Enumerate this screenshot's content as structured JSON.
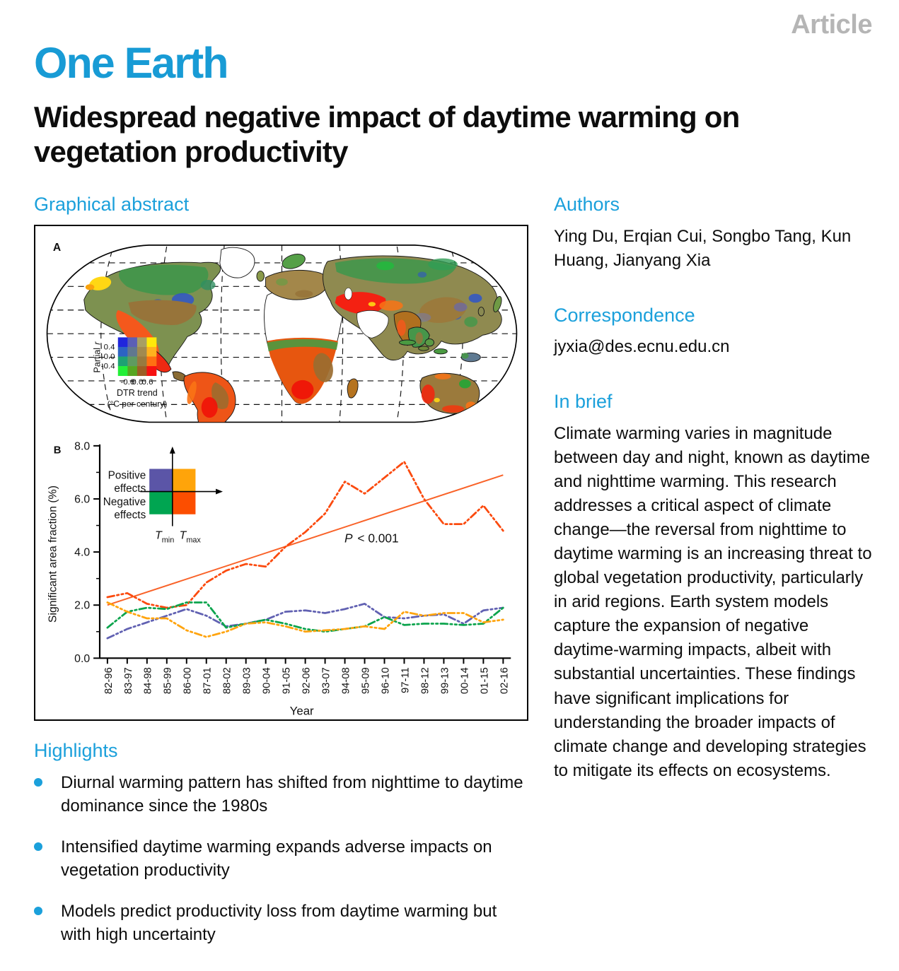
{
  "header": {
    "article_label": "Article",
    "journal": "One Earth",
    "title": "Widespread negative impact of daytime warming on vegetation productivity"
  },
  "left": {
    "graphical_abstract_heading": "Graphical abstract",
    "highlights_heading": "Highlights",
    "highlights": [
      "Diurnal warming pattern has shifted from nighttime to daytime dominance since the 1980s",
      "Intensified daytime warming expands adverse impacts on vegetation productivity",
      "Models predict productivity loss from daytime warming but with high uncertainty"
    ]
  },
  "right": {
    "authors_heading": "Authors",
    "authors": "Ying Du, Erqian Cui, Songbo Tang, Kun Huang, Jianyang Xia",
    "correspondence_heading": "Correspondence",
    "correspondence_email": "jyxia@des.ecnu.edu.cn",
    "in_brief_heading": "In brief",
    "in_brief_text": "Climate warming varies in magnitude between day and night, known as daytime and nighttime warming. This research addresses a critical aspect of climate change—the reversal from nighttime to daytime warming is an increasing threat to global vegetation productivity, particularly in arid regions. Earth system models capture the expansion of negative daytime-warming impacts, albeit with substantial uncertainties. These findings have significant implications for understanding the broader impacts of climate change and developing strategies to mitigate its effects on ecosystems."
  },
  "figure": {
    "panel_a_label": "A",
    "panel_b_label": "B",
    "map_legend": {
      "y_label_main": "Partial",
      "y_label_italic": "r",
      "y_ticks": [
        "0.4",
        "0.0",
        "-0.4"
      ],
      "x_ticks": [
        "-0.6",
        "0.0",
        "0.6"
      ],
      "x_title": "DTR trend",
      "x_subtitle": "(°C per century)",
      "colors": [
        [
          "#2026dd",
          "#5c5fb6",
          "#a89f63",
          "#ffe90a"
        ],
        [
          "#2c63c3",
          "#61788f",
          "#a18a50",
          "#ffb21e"
        ],
        [
          "#1ea273",
          "#5f9b60",
          "#977a40",
          "#ff7012"
        ],
        [
          "#23ef38",
          "#57a622",
          "#9c5e25",
          "#f71111"
        ]
      ]
    }
  },
  "chart_data": {
    "type": "line",
    "xlabel": "Year",
    "ylabel": "Significant area fraction (%)",
    "ylim": [
      0,
      8
    ],
    "yticks": [
      0,
      2,
      4,
      6,
      8
    ],
    "grid": false,
    "legend_position": "upper-left inset (quadrant diagram)",
    "categories": [
      "82-96",
      "83-97",
      "84-98",
      "85-99",
      "86-00",
      "87-01",
      "88-02",
      "89-03",
      "90-04",
      "91-05",
      "92-06",
      "93-07",
      "94-08",
      "95-09",
      "96-10",
      "97-11",
      "98-12",
      "99-13",
      "00-14",
      "01-15",
      "02-16"
    ],
    "series": [
      {
        "name": "Tmax negative effects",
        "color": "#fb4a0e",
        "style": "dashdotdot",
        "values": [
          2.3,
          2.45,
          2.05,
          1.9,
          2.0,
          2.85,
          3.3,
          3.55,
          3.45,
          4.2,
          4.75,
          5.45,
          6.65,
          6.2,
          6.8,
          7.4,
          6.0,
          5.05,
          5.05,
          5.75,
          4.8
        ]
      },
      {
        "name": "Tmin positive effects",
        "color": "#6161b2",
        "style": "dashdotdot",
        "values": [
          0.75,
          1.1,
          1.35,
          1.6,
          1.85,
          1.6,
          1.2,
          1.3,
          1.45,
          1.75,
          1.8,
          1.7,
          1.85,
          2.05,
          1.55,
          1.5,
          1.6,
          1.65,
          1.3,
          1.8,
          1.9
        ]
      },
      {
        "name": "Tmin negative effects",
        "color": "#0ca44d",
        "style": "dashdotdot",
        "values": [
          1.15,
          1.75,
          1.9,
          1.85,
          2.1,
          2.1,
          1.15,
          1.3,
          1.45,
          1.3,
          1.1,
          1.0,
          1.1,
          1.2,
          1.55,
          1.25,
          1.3,
          1.3,
          1.25,
          1.3,
          1.9
        ]
      },
      {
        "name": "Tmax positive effects",
        "color": "#ffa40e",
        "style": "dashdotdot",
        "values": [
          2.1,
          1.75,
          1.5,
          1.5,
          1.05,
          0.8,
          1.0,
          1.3,
          1.35,
          1.2,
          1.0,
          1.05,
          1.1,
          1.2,
          1.1,
          1.75,
          1.6,
          1.7,
          1.7,
          1.35,
          1.45
        ]
      }
    ],
    "trend": {
      "start": 2.0,
      "end": 6.9,
      "color": "#f96228",
      "annotation_italic": "P",
      "annotation_rest": "< 0.001"
    },
    "legend": {
      "positive_line1": "Positive",
      "positive_line2": "effects",
      "negative_line1": "Negative",
      "negative_line2": "effects",
      "tmin_main": "T",
      "tmin_sub": "min",
      "tmax_main": "T",
      "tmax_sub": "max",
      "tmin_pos_color": "#5b55a7",
      "tmax_pos_color": "#ffa40a",
      "tmin_neg_color": "#00a551",
      "tmax_neg_color": "#fc4e00"
    }
  }
}
